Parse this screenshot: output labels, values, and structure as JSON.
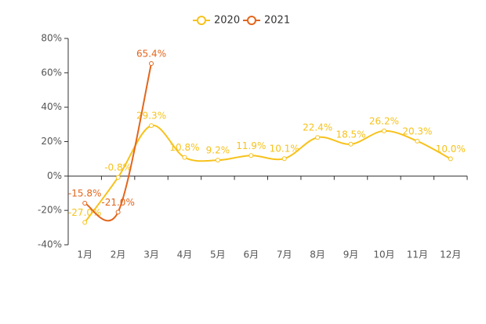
{
  "chart_data": {
    "type": "line",
    "categories": [
      "1月",
      "2月",
      "3月",
      "4月",
      "5月",
      "6月",
      "7月",
      "8月",
      "9月",
      "10月",
      "11月",
      "12月"
    ],
    "series": [
      {
        "name": "2020",
        "color": "#f7c21c",
        "values": [
          -27.0,
          -0.8,
          29.3,
          10.8,
          9.2,
          11.9,
          10.1,
          22.4,
          18.5,
          26.2,
          20.3,
          10.0
        ],
        "value_labels": [
          "-27.0%",
          "-0.8%",
          "29.3%",
          "10.8%",
          "9.2%",
          "11.9%",
          "10.1%",
          "22.4%",
          "18.5%",
          "26.2%",
          "20.3%",
          "10.0%"
        ]
      },
      {
        "name": "2021",
        "color": "#e2661c",
        "values": [
          -15.8,
          -21.0,
          65.4,
          null,
          null,
          null,
          null,
          null,
          null,
          null,
          null,
          null
        ],
        "value_labels": [
          "-15.8%",
          "-21.0%",
          "65.4%",
          null,
          null,
          null,
          null,
          null,
          null,
          null,
          null,
          null
        ]
      }
    ],
    "ylim": [
      -40,
      80
    ],
    "yticks": [
      {
        "value": -40,
        "label": "-40%"
      },
      {
        "value": -20,
        "label": "-20%"
      },
      {
        "value": 0,
        "label": "0%"
      },
      {
        "value": 20,
        "label": "20%"
      },
      {
        "value": 40,
        "label": "40%"
      },
      {
        "value": 60,
        "label": "60%"
      },
      {
        "value": 80,
        "label": "80%"
      }
    ],
    "legend": "top"
  }
}
